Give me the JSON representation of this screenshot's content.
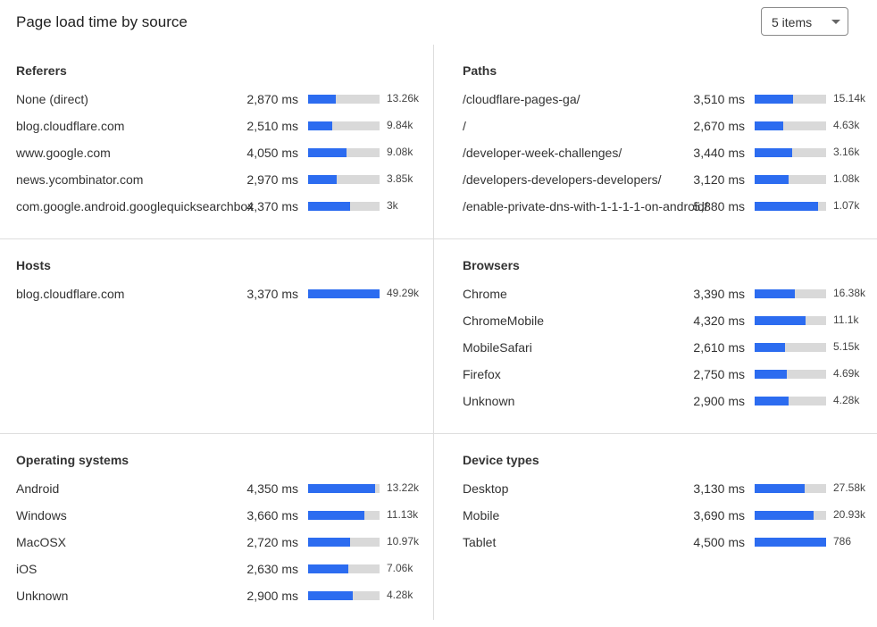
{
  "header": {
    "title": "Page load time by source",
    "items_select": "5 items"
  },
  "colors": {
    "bar_fill": "#2c6cf0",
    "bar_track": "#d9d9d9"
  },
  "panels": [
    {
      "title": "Referers",
      "rows": [
        {
          "label": "None (direct)",
          "ms": "2,870 ms",
          "count": "13.26k",
          "fill": 0.39
        },
        {
          "label": "blog.cloudflare.com",
          "ms": "2,510 ms",
          "count": "9.84k",
          "fill": 0.34
        },
        {
          "label": "www.google.com",
          "ms": "4,050 ms",
          "count": "9.08k",
          "fill": 0.54
        },
        {
          "label": "news.ycombinator.com",
          "ms": "2,970 ms",
          "count": "3.85k",
          "fill": 0.4
        },
        {
          "label": "com.google.android.googlequicksearchbox",
          "ms": "4,370 ms",
          "count": "3k",
          "fill": 0.59
        }
      ]
    },
    {
      "title": "Paths",
      "rows": [
        {
          "label": "/cloudflare-pages-ga/",
          "ms": "3,510 ms",
          "count": "15.14k",
          "fill": 0.54
        },
        {
          "label": "/",
          "ms": "2,670 ms",
          "count": "4.63k",
          "fill": 0.4
        },
        {
          "label": "/developer-week-challenges/",
          "ms": "3,440 ms",
          "count": "3.16k",
          "fill": 0.53
        },
        {
          "label": "/developers-developers-developers/",
          "ms": "3,120 ms",
          "count": "1.08k",
          "fill": 0.475
        },
        {
          "label": "/enable-private-dns-with-1-1-1-1-on-android/",
          "ms": "5,880 ms",
          "count": "1.07k",
          "fill": 0.89
        }
      ]
    },
    {
      "title": "Hosts",
      "rows": [
        {
          "label": "blog.cloudflare.com",
          "ms": "3,370 ms",
          "count": "49.29k",
          "fill": 1.0
        }
      ]
    },
    {
      "title": "Browsers",
      "rows": [
        {
          "label": "Chrome",
          "ms": "3,390 ms",
          "count": "16.38k",
          "fill": 0.56
        },
        {
          "label": "ChromeMobile",
          "ms": "4,320 ms",
          "count": "11.1k",
          "fill": 0.71
        },
        {
          "label": "MobileSafari",
          "ms": "2,610 ms",
          "count": "5.15k",
          "fill": 0.43
        },
        {
          "label": "Firefox",
          "ms": "2,750 ms",
          "count": "4.69k",
          "fill": 0.45
        },
        {
          "label": "Unknown",
          "ms": "2,900 ms",
          "count": "4.28k",
          "fill": 0.48
        }
      ]
    },
    {
      "title": "Operating systems",
      "rows": [
        {
          "label": "Android",
          "ms": "4,350 ms",
          "count": "13.22k",
          "fill": 0.94
        },
        {
          "label": "Windows",
          "ms": "3,660 ms",
          "count": "11.13k",
          "fill": 0.79
        },
        {
          "label": "MacOSX",
          "ms": "2,720 ms",
          "count": "10.97k",
          "fill": 0.59
        },
        {
          "label": "iOS",
          "ms": "2,630 ms",
          "count": "7.06k",
          "fill": 0.56
        },
        {
          "label": "Unknown",
          "ms": "2,900 ms",
          "count": "4.28k",
          "fill": 0.63
        }
      ]
    },
    {
      "title": "Device types",
      "rows": [
        {
          "label": "Desktop",
          "ms": "3,130 ms",
          "count": "27.58k",
          "fill": 0.7
        },
        {
          "label": "Mobile",
          "ms": "3,690 ms",
          "count": "20.93k",
          "fill": 0.83
        },
        {
          "label": "Tablet",
          "ms": "4,500 ms",
          "count": "786",
          "fill": 1.0
        }
      ]
    }
  ]
}
